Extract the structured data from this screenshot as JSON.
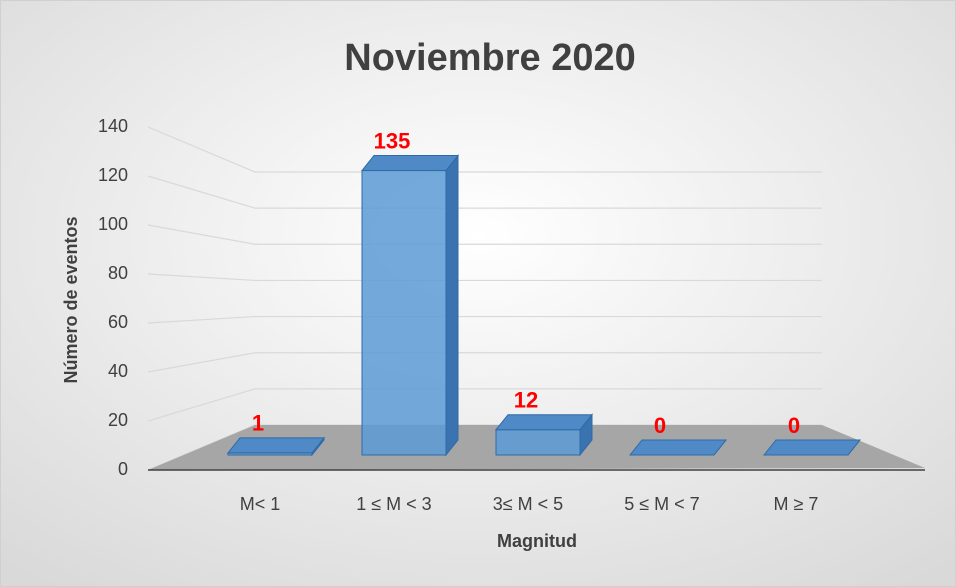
{
  "chart_data": {
    "type": "bar3d",
    "title": "Noviembre 2020",
    "x_label": "Magnitud",
    "y_label": "Número de eventos",
    "categories": [
      "M< 1",
      "1 ≤ M < 3",
      "3≤ M < 5",
      "5 ≤ M < 7",
      "M ≥ 7"
    ],
    "values": [
      1,
      135,
      12,
      0,
      0
    ],
    "color": "#5b9bd5",
    "ylim": [
      0,
      140
    ],
    "yticks": [
      0,
      20,
      40,
      60,
      80,
      100,
      120,
      140
    ],
    "grid": true
  }
}
